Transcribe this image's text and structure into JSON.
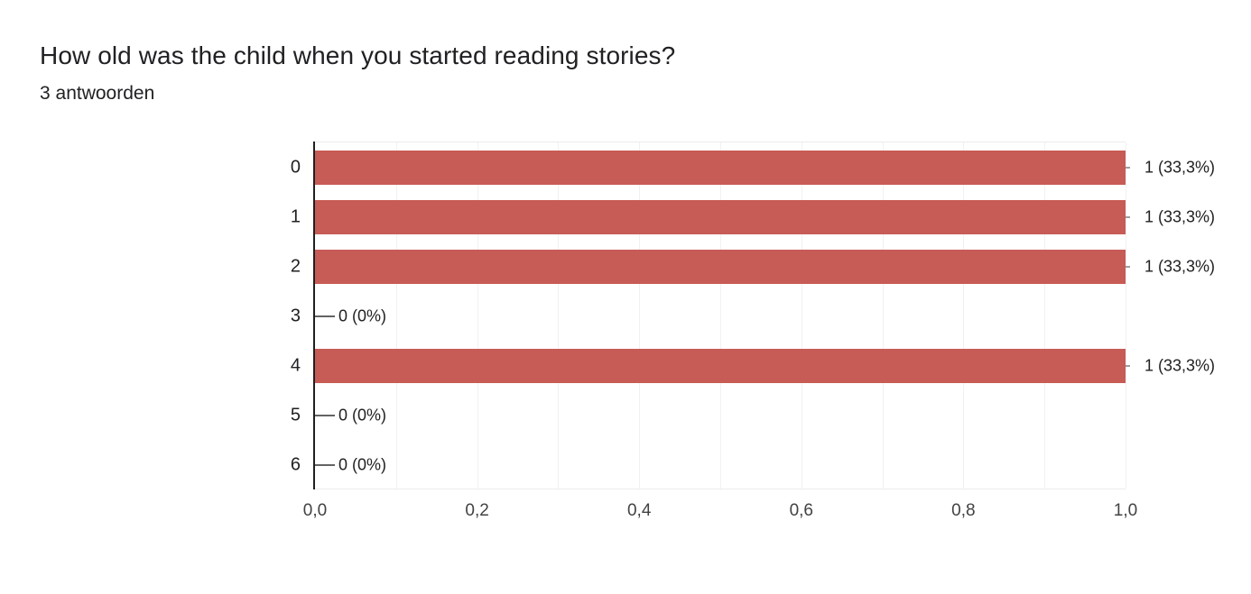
{
  "header": {
    "title": "How old was the child when you started reading stories?",
    "subtitle": "3 antwoorden"
  },
  "chart_data": {
    "type": "bar",
    "orientation": "horizontal",
    "title": "How old was the child when you started reading stories?",
    "subtitle": "3 antwoorden",
    "categories": [
      "0",
      "1",
      "2",
      "3",
      "4",
      "5",
      "6"
    ],
    "values": [
      1,
      1,
      1,
      0,
      1,
      0,
      0
    ],
    "value_labels": [
      "1 (33,3%)",
      "1 (33,3%)",
      "1 (33,3%)",
      "0 (0%)",
      "1 (33,3%)",
      "0 (0%)",
      "0 (0%)"
    ],
    "x_tick_labels": [
      "0,0",
      "0,2",
      "0,4",
      "0,6",
      "0,8",
      "1,0"
    ],
    "x_tick_values": [
      0,
      0.2,
      0.4,
      0.6,
      0.8,
      1.0
    ],
    "xlim": [
      0,
      1
    ],
    "grid": true,
    "minor_grid_step": 0.1,
    "legend": "none",
    "colors": {
      "bar": "#c75b55",
      "axis": "#1f1f1f",
      "grid": "#f1f1f1",
      "text": "#202124",
      "tick_text": "#424242",
      "stem": "#636363"
    }
  }
}
